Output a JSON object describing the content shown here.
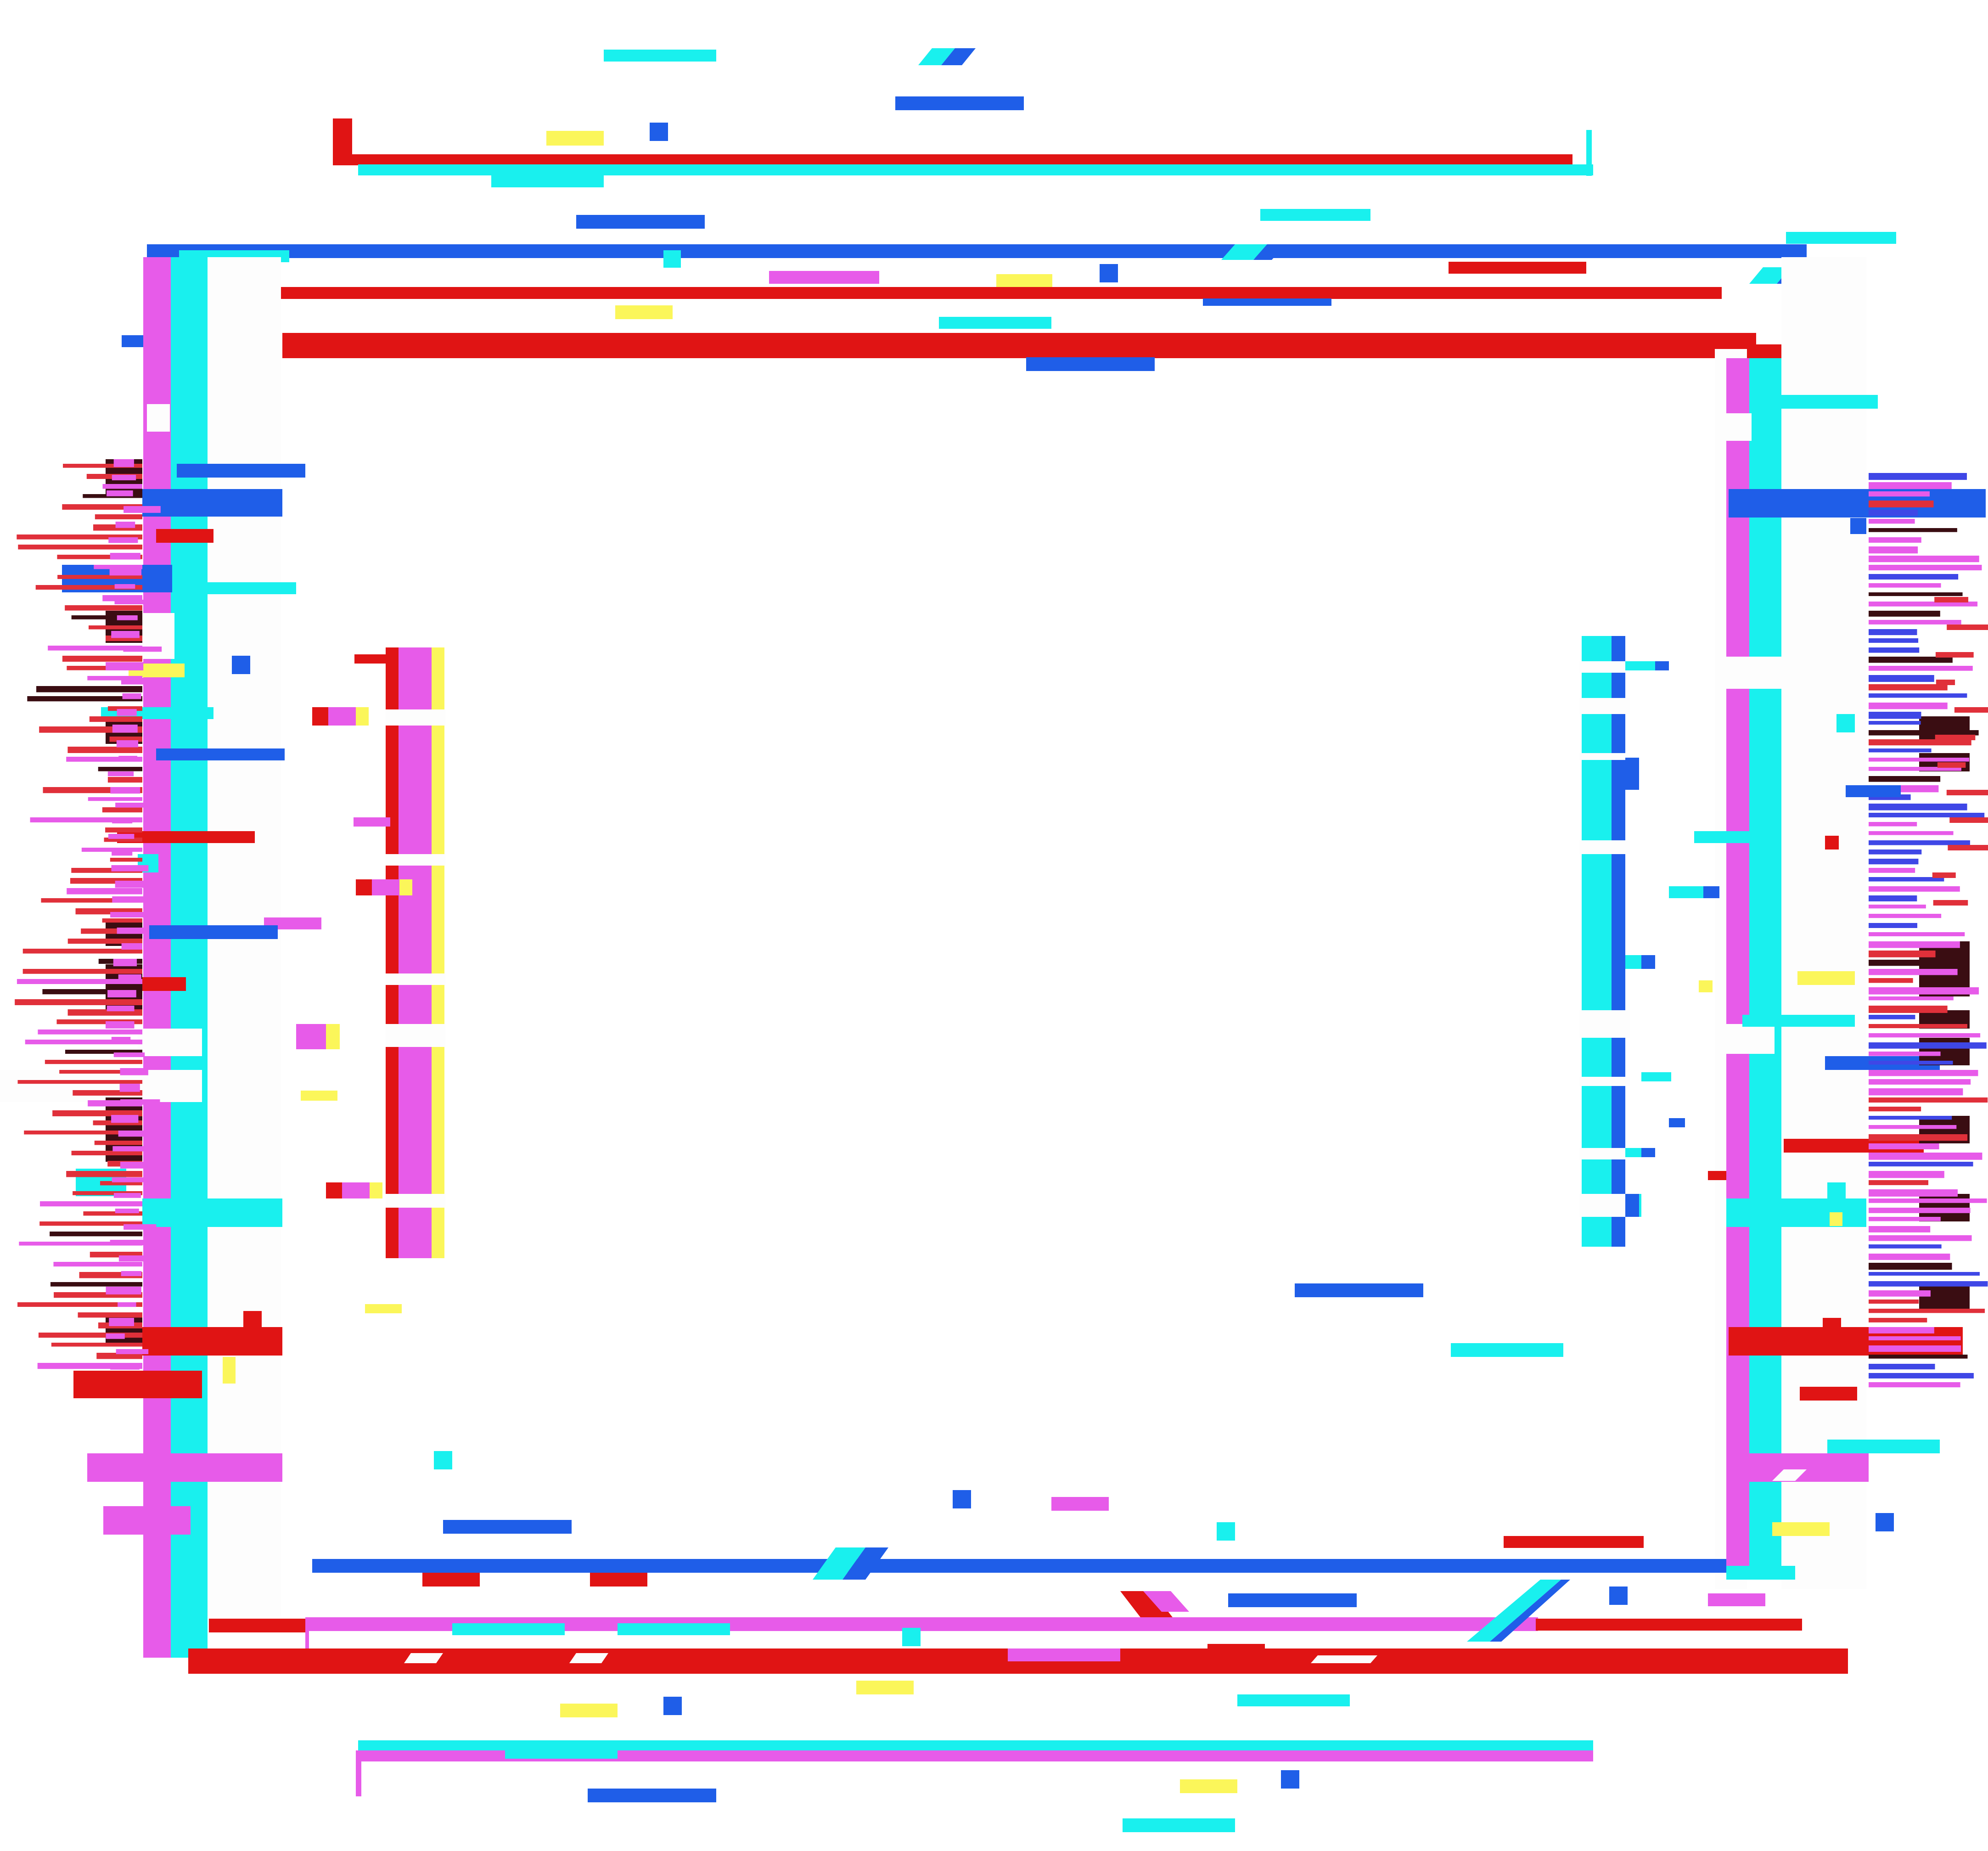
{
  "artwork": {
    "description_name": "glitch-square-frame",
    "palette": {
      "red": "#e01414",
      "blue": "#1f5ee8",
      "cyan": "#19f0ee",
      "magenta": "#e75be9",
      "yellow": "#fbf65a",
      "dark": "#3a0d12",
      "white": "#fdfdfd"
    },
    "icon": "glitch-frame-icon"
  }
}
